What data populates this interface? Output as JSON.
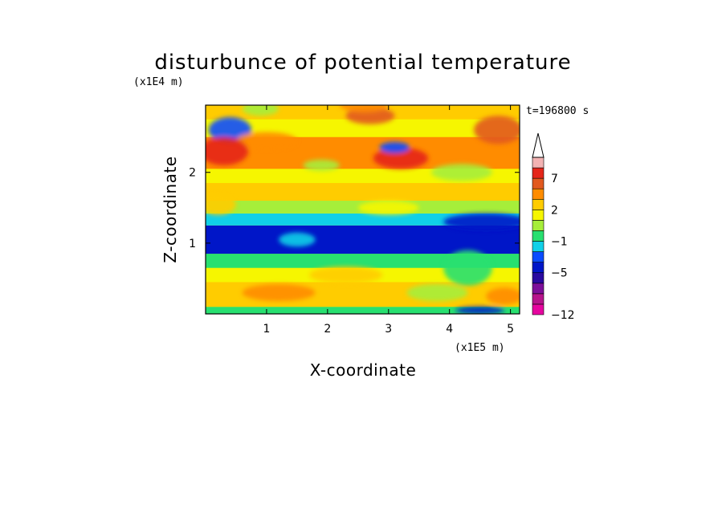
{
  "chart_data": {
    "type": "heatmap",
    "title": "disturbunce of potential temperature",
    "xlabel": "X-coordinate",
    "ylabel": "Z-coordinate",
    "x_unit": "(x1E5 m)",
    "y_unit": "(x1E4 m)",
    "time_label": "t=196800 s",
    "xlim": [
      0,
      5.15
    ],
    "ylim": [
      0,
      2.95
    ],
    "x_ticks": [
      1,
      2,
      3,
      4,
      5
    ],
    "y_ticks": [
      1,
      2
    ],
    "colorbar": {
      "levels": [
        -12,
        -11,
        -9,
        -7,
        -5,
        -4,
        -3,
        -1,
        0,
        1,
        2,
        3,
        5,
        7,
        8,
        9
      ],
      "tick_labels": [
        "7",
        "2",
        "-1",
        "-5",
        "-12"
      ],
      "extend": "max",
      "colors": [
        "#e6059f",
        "#b7148c",
        "#7d0f9a",
        "#2a0aa0",
        "#0016c8",
        "#0a4cff",
        "#10d0e8",
        "#28e070",
        "#a6ee3a",
        "#f6f600",
        "#ffcc00",
        "#ff8c00",
        "#e2591f",
        "#e5261a",
        "#f3b3b3"
      ]
    },
    "bands": [
      {
        "z_from": 0.0,
        "z_to": 0.1,
        "value": -1
      },
      {
        "z_from": 0.1,
        "z_to": 0.45,
        "value": 2
      },
      {
        "z_from": 0.45,
        "z_to": 0.65,
        "value": 1
      },
      {
        "z_from": 0.65,
        "z_to": 0.85,
        "value": -1
      },
      {
        "z_from": 0.85,
        "z_to": 1.25,
        "value": -5
      },
      {
        "z_from": 1.25,
        "z_to": 1.42,
        "value": -3
      },
      {
        "z_from": 1.42,
        "z_to": 1.6,
        "value": 0
      },
      {
        "z_from": 1.6,
        "z_to": 1.85,
        "value": 2
      },
      {
        "z_from": 1.85,
        "z_to": 2.05,
        "value": 1
      },
      {
        "z_from": 2.05,
        "z_to": 2.5,
        "value": 3
      },
      {
        "z_from": 2.5,
        "z_to": 2.75,
        "value": 1
      },
      {
        "z_from": 2.75,
        "z_to": 2.95,
        "value": 2
      }
    ]
  }
}
